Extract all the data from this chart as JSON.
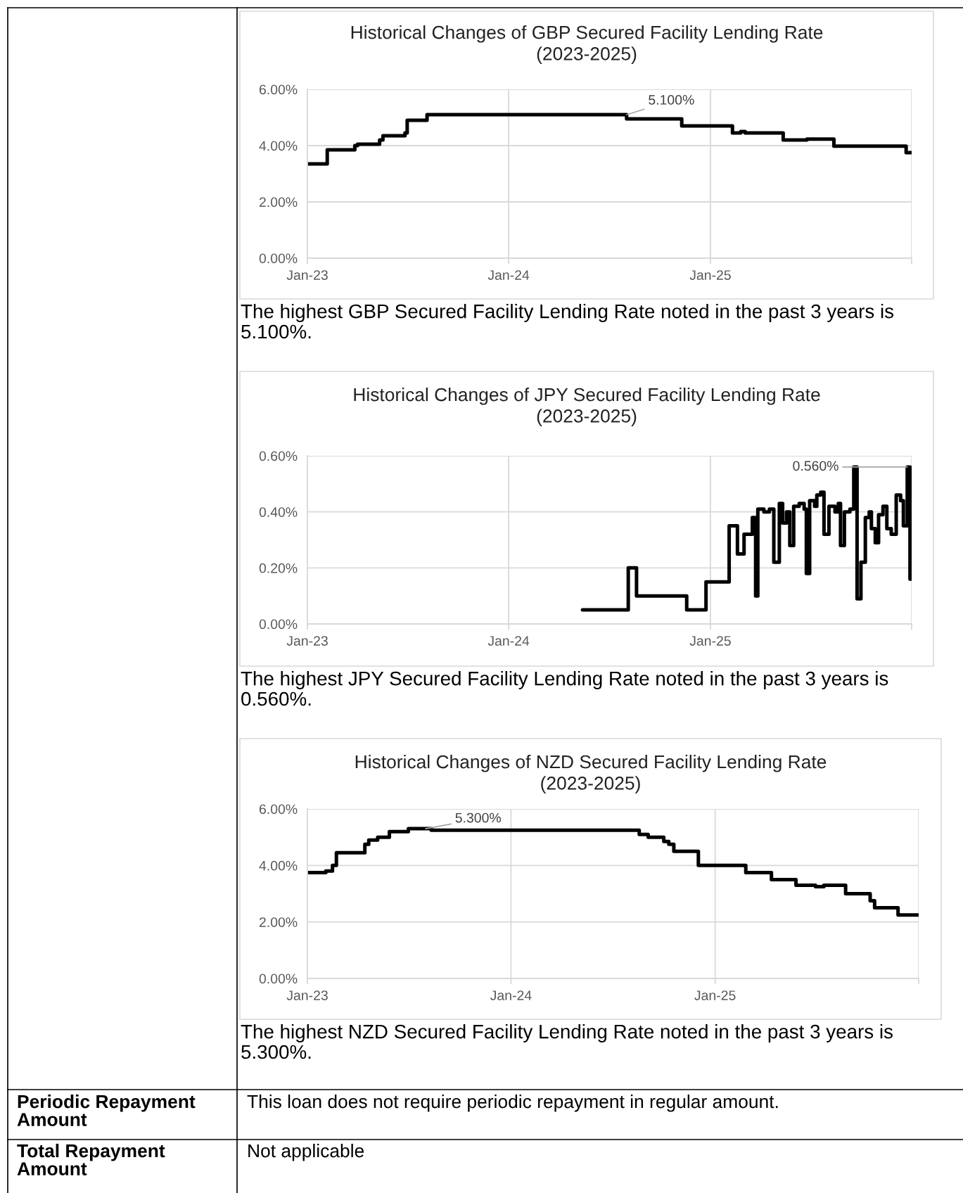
{
  "chart_data": [
    {
      "type": "step",
      "title": "Historical Changes of GBP Secured Facility Lending Rate\n(2023-2025)",
      "x": [
        "2023-01-01",
        "2023-02-06",
        "2023-03-28",
        "2023-04-02",
        "2023-05-12",
        "2023-05-18",
        "2023-06-27",
        "2023-07-01",
        "2023-08-06",
        "2024-08-02",
        "2024-11-10",
        "2025-02-10",
        "2025-02-25",
        "2025-03-05",
        "2025-05-13",
        "2025-06-25",
        "2025-08-13",
        "2025-12-22",
        "2025-12-31"
      ],
      "series": [
        {
          "color": "#000000",
          "values": [
            3.35,
            3.85,
            4.0,
            4.05,
            4.2,
            4.35,
            4.45,
            4.9,
            5.1,
            4.95,
            4.7,
            4.45,
            4.5,
            4.45,
            4.2,
            4.23,
            3.98,
            3.75,
            3.75
          ]
        }
      ],
      "xlim": [
        "2023-01-01",
        "2026-01-01"
      ],
      "xticks": [
        {
          "value": "2023-01-01",
          "label": "Jan-23"
        },
        {
          "value": "2024-01-01",
          "label": "Jan-24"
        },
        {
          "value": "2025-01-01",
          "label": "Jan-25"
        },
        {
          "value": "2026-01-01",
          "label": null
        }
      ],
      "ylim": [
        0,
        6
      ],
      "yticks": [
        {
          "value": 0,
          "label": "0.00%"
        },
        {
          "value": 2,
          "label": "2.00%"
        },
        {
          "value": 4,
          "label": "4.00%"
        },
        {
          "value": 6,
          "label": "6.00%"
        }
      ],
      "grid": true,
      "annotations": [
        {
          "text": "5.100%",
          "x": "2024-08-02",
          "y": 5.1
        },
        "The highest GBP Secured Facility Lending Rate noted in the past 3 years is\n5.100%."
      ]
    },
    {
      "type": "step",
      "title": "Historical Changes of JPY Secured Facility Lending Rate\n(2023-2025)",
      "x": [
        "2024-05-14",
        "2024-08-05",
        "2024-08-20",
        "2024-11-19",
        "2024-12-24",
        "2025-02-04",
        "2025-02-19",
        "2025-03-03",
        "2025-03-18",
        "2025-03-24",
        "2025-03-28",
        "2025-04-08",
        "2025-04-18",
        "2025-04-26",
        "2025-05-06",
        "2025-05-12",
        "2025-05-19",
        "2025-05-25",
        "2025-06-01",
        "2025-06-11",
        "2025-06-20",
        "2025-06-24",
        "2025-06-30",
        "2025-07-09",
        "2025-07-13",
        "2025-07-20",
        "2025-07-26",
        "2025-08-04",
        "2025-08-15",
        "2025-08-21",
        "2025-08-25",
        "2025-09-01",
        "2025-09-11",
        "2025-09-18",
        "2025-09-24",
        "2025-10-01",
        "2025-10-09",
        "2025-10-16",
        "2025-10-20",
        "2025-10-27",
        "2025-11-02",
        "2025-11-10",
        "2025-11-17",
        "2025-11-25",
        "2025-12-04",
        "2025-12-12",
        "2025-12-17",
        "2025-12-24",
        "2025-12-29",
        "2025-12-31"
      ],
      "series": [
        {
          "color": "#000000",
          "values": [
            0.05,
            0.2,
            0.1,
            0.05,
            0.15,
            0.35,
            0.25,
            0.32,
            0.38,
            0.1,
            0.41,
            0.4,
            0.41,
            0.22,
            0.43,
            0.36,
            0.4,
            0.28,
            0.42,
            0.43,
            0.41,
            0.18,
            0.44,
            0.42,
            0.46,
            0.47,
            0.32,
            0.42,
            0.4,
            0.43,
            0.28,
            0.4,
            0.41,
            0.56,
            0.09,
            0.22,
            0.38,
            0.4,
            0.34,
            0.29,
            0.39,
            0.42,
            0.34,
            0.32,
            0.46,
            0.44,
            0.35,
            0.56,
            0.16,
            0.16
          ]
        }
      ],
      "xlim": [
        "2023-01-01",
        "2026-01-01"
      ],
      "xticks": [
        {
          "value": "2023-01-01",
          "label": "Jan-23"
        },
        {
          "value": "2024-01-01",
          "label": "Jan-24"
        },
        {
          "value": "2025-01-01",
          "label": "Jan-25"
        },
        {
          "value": "2026-01-01",
          "label": null
        }
      ],
      "ylim": [
        0,
        0.6
      ],
      "yticks": [
        {
          "value": 0,
          "label": "0.00%"
        },
        {
          "value": 0.2,
          "label": "0.20%"
        },
        {
          "value": 0.4,
          "label": "0.40%"
        },
        {
          "value": 0.6,
          "label": "0.60%"
        }
      ],
      "grid": true,
      "annotations": [
        {
          "text": "0.560%",
          "x": "2025-12-24",
          "y": 0.56
        },
        "The highest JPY Secured Facility Lending Rate noted in the past 3 years is\n0.560%."
      ]
    },
    {
      "type": "step",
      "title": "Historical Changes of NZD Secured Facility Lending Rate\n(2023-2025)",
      "x": [
        "2023-01-01",
        "2023-02-03",
        "2023-02-15",
        "2023-02-22",
        "2023-04-14",
        "2023-04-21",
        "2023-05-07",
        "2023-05-28",
        "2023-07-01",
        "2023-08-11",
        "2024-08-18",
        "2024-09-03",
        "2024-10-01",
        "2024-10-10",
        "2024-10-19",
        "2024-12-02",
        "2025-02-25",
        "2025-04-12",
        "2025-05-26",
        "2025-06-30",
        "2025-07-15",
        "2025-08-23",
        "2025-10-06",
        "2025-10-14",
        "2025-11-25",
        "2025-12-31"
      ],
      "series": [
        {
          "color": "#000000",
          "values": [
            3.75,
            3.8,
            4.0,
            4.45,
            4.75,
            4.9,
            5.0,
            5.2,
            5.3,
            5.25,
            5.1,
            5.0,
            4.85,
            4.75,
            4.5,
            4.0,
            3.75,
            3.5,
            3.3,
            3.25,
            3.3,
            3.0,
            2.75,
            2.5,
            2.25,
            2.25
          ]
        }
      ],
      "xlim": [
        "2023-01-01",
        "2026-01-01"
      ],
      "xticks": [
        {
          "value": "2023-01-01",
          "label": "Jan-23"
        },
        {
          "value": "2024-01-01",
          "label": "Jan-24"
        },
        {
          "value": "2025-01-01",
          "label": "Jan-25"
        },
        {
          "value": "2026-01-01",
          "label": null
        }
      ],
      "ylim": [
        0,
        6
      ],
      "yticks": [
        {
          "value": 0,
          "label": "0.00%"
        },
        {
          "value": 2,
          "label": "2.00%"
        },
        {
          "value": 4,
          "label": "4.00%"
        },
        {
          "value": 6,
          "label": "6.00%"
        }
      ],
      "grid": true,
      "annotations": [
        {
          "text": "5.300%",
          "x": "2023-08-01",
          "y": 5.3
        },
        "The highest NZD Secured Facility Lending Rate noted in the past 3 years is\n5.300%."
      ]
    },
    {
      "type": "other",
      "annotations": [
        "Periodic Repayment\nAmount",
        "This loan does not require periodic repayment in regular amount.",
        "Total Repayment\nAmount",
        "Not applicable"
      ]
    }
  ]
}
